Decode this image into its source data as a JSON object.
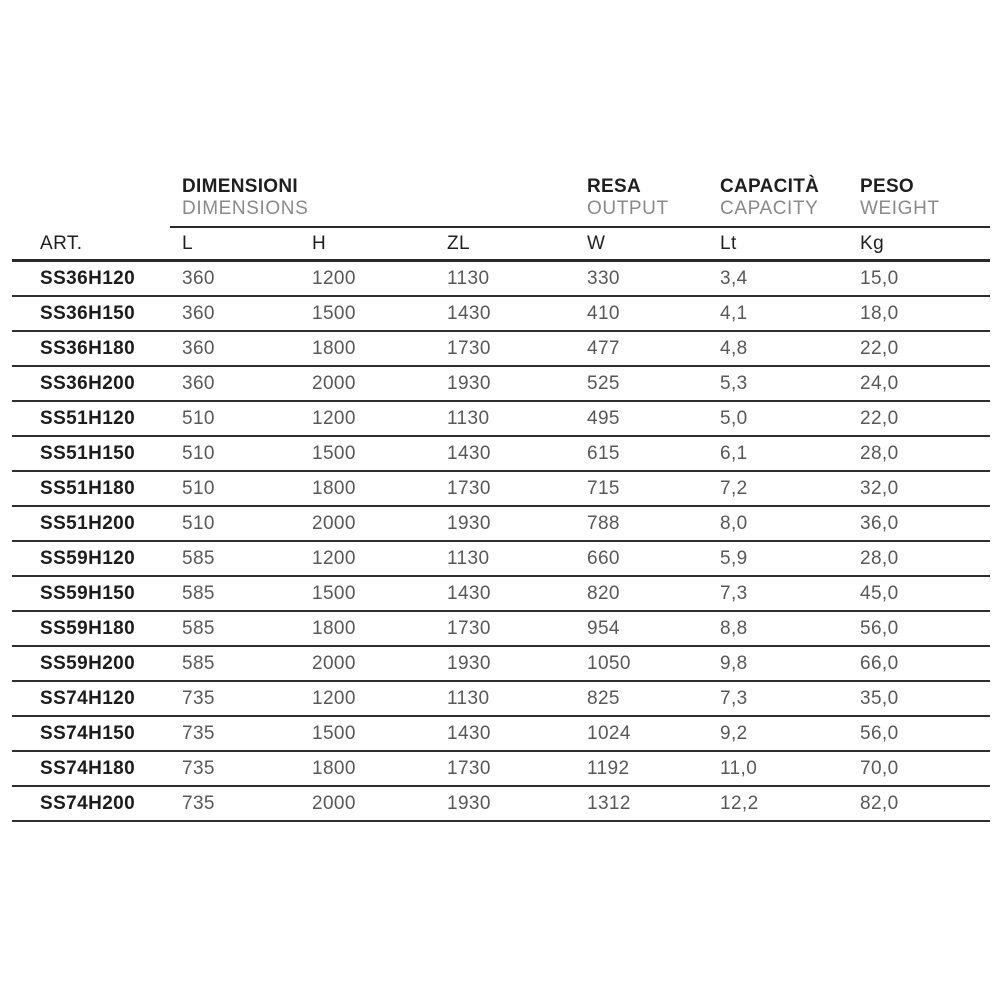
{
  "page": {
    "background": "#ffffff"
  },
  "colors": {
    "text_dark": "#1f1f1f",
    "text_article": "#1c1c1c",
    "text_secondary_header": "#8a8a8a",
    "text_value": "#585858",
    "rule_line": "#2a2a2a",
    "background": "#ffffff"
  },
  "table": {
    "header": {
      "art_label": "ART.",
      "groups": [
        {
          "primary": "DIMENSIONI",
          "secondary": "DIMENSIONS"
        },
        {
          "primary": "RESA",
          "secondary": "OUTPUT"
        },
        {
          "primary": "CAPACITÀ",
          "secondary": "CAPACITY"
        },
        {
          "primary": "PESO",
          "secondary": "WEIGHT"
        }
      ],
      "columns": [
        "L",
        "H",
        "ZL",
        "W",
        "Lt",
        "Kg"
      ]
    },
    "rows": [
      [
        "SS36H120",
        "360",
        "1200",
        "1130",
        "330",
        "3,4",
        "15,0"
      ],
      [
        "SS36H150",
        "360",
        "1500",
        "1430",
        "410",
        "4,1",
        "18,0"
      ],
      [
        "SS36H180",
        "360",
        "1800",
        "1730",
        "477",
        "4,8",
        "22,0"
      ],
      [
        "SS36H200",
        "360",
        "2000",
        "1930",
        "525",
        "5,3",
        "24,0"
      ],
      [
        "SS51H120",
        "510",
        "1200",
        "1130",
        "495",
        "5,0",
        "22,0"
      ],
      [
        "SS51H150",
        "510",
        "1500",
        "1430",
        "615",
        "6,1",
        "28,0"
      ],
      [
        "SS51H180",
        "510",
        "1800",
        "1730",
        "715",
        "7,2",
        "32,0"
      ],
      [
        "SS51H200",
        "510",
        "2000",
        "1930",
        "788",
        "8,0",
        "36,0"
      ],
      [
        "SS59H120",
        "585",
        "1200",
        "1130",
        "660",
        "5,9",
        "28,0"
      ],
      [
        "SS59H150",
        "585",
        "1500",
        "1430",
        "820",
        "7,3",
        "45,0"
      ],
      [
        "SS59H180",
        "585",
        "1800",
        "1730",
        "954",
        "8,8",
        "56,0"
      ],
      [
        "SS59H200",
        "585",
        "2000",
        "1930",
        "1050",
        "9,8",
        "66,0"
      ],
      [
        "SS74H120",
        "735",
        "1200",
        "1130",
        "825",
        "7,3",
        "35,0"
      ],
      [
        "SS74H150",
        "735",
        "1500",
        "1430",
        "1024",
        "9,2",
        "56,0"
      ],
      [
        "SS74H180",
        "735",
        "1800",
        "1730",
        "1192",
        "11,0",
        "70,0"
      ],
      [
        "SS74H200",
        "735",
        "2000",
        "1930",
        "1312",
        "12,2",
        "82,0"
      ]
    ]
  }
}
